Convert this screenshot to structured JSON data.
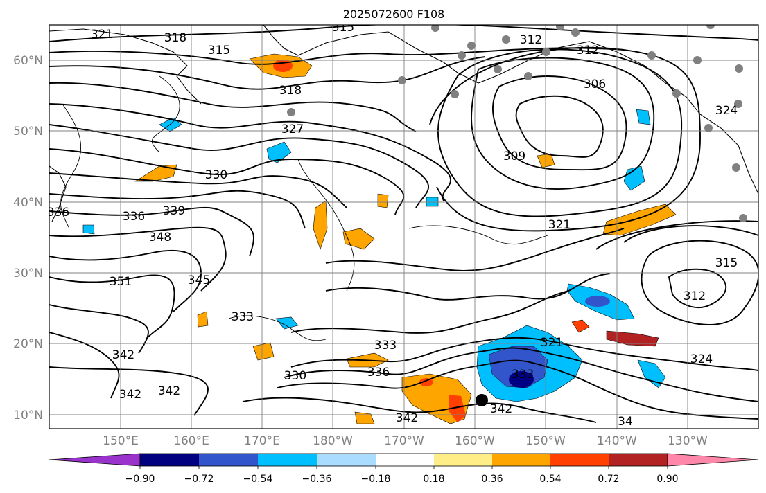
{
  "title": "2025072600 F108",
  "map": {
    "lat_labels": [
      "60°N",
      "50°N",
      "40°N",
      "30°N",
      "20°N",
      "10°N"
    ],
    "lon_labels": [
      "150°E",
      "160°E",
      "170°E",
      "180°W",
      "170°W",
      "160°W",
      "150°W",
      "140°W",
      "130°W"
    ]
  },
  "contour_labels": [
    "321",
    "318",
    "315",
    "315",
    "312",
    "312",
    "306",
    "324",
    "318",
    "327",
    "309",
    "330",
    "336",
    "339",
    "336",
    "348",
    "321",
    "351",
    "345",
    "315",
    "312",
    "333",
    "333",
    "342",
    "324",
    "321",
    "336",
    "333",
    "330",
    "342",
    "342",
    "342",
    "342",
    "34"
  ],
  "colorbar": {
    "tick_labels": [
      "−0.90",
      "−0.72",
      "−0.54",
      "−0.36",
      "−0.18",
      "0.18",
      "0.36",
      "0.54",
      "0.72",
      "0.90"
    ],
    "colors": [
      "#9933cc",
      "#000080",
      "#3355cc",
      "#00bfff",
      "#aadcff",
      "#ffffff",
      "#ffee88",
      "#ffa500",
      "#ff4000",
      "#b22222",
      "#ff88aa"
    ]
  }
}
